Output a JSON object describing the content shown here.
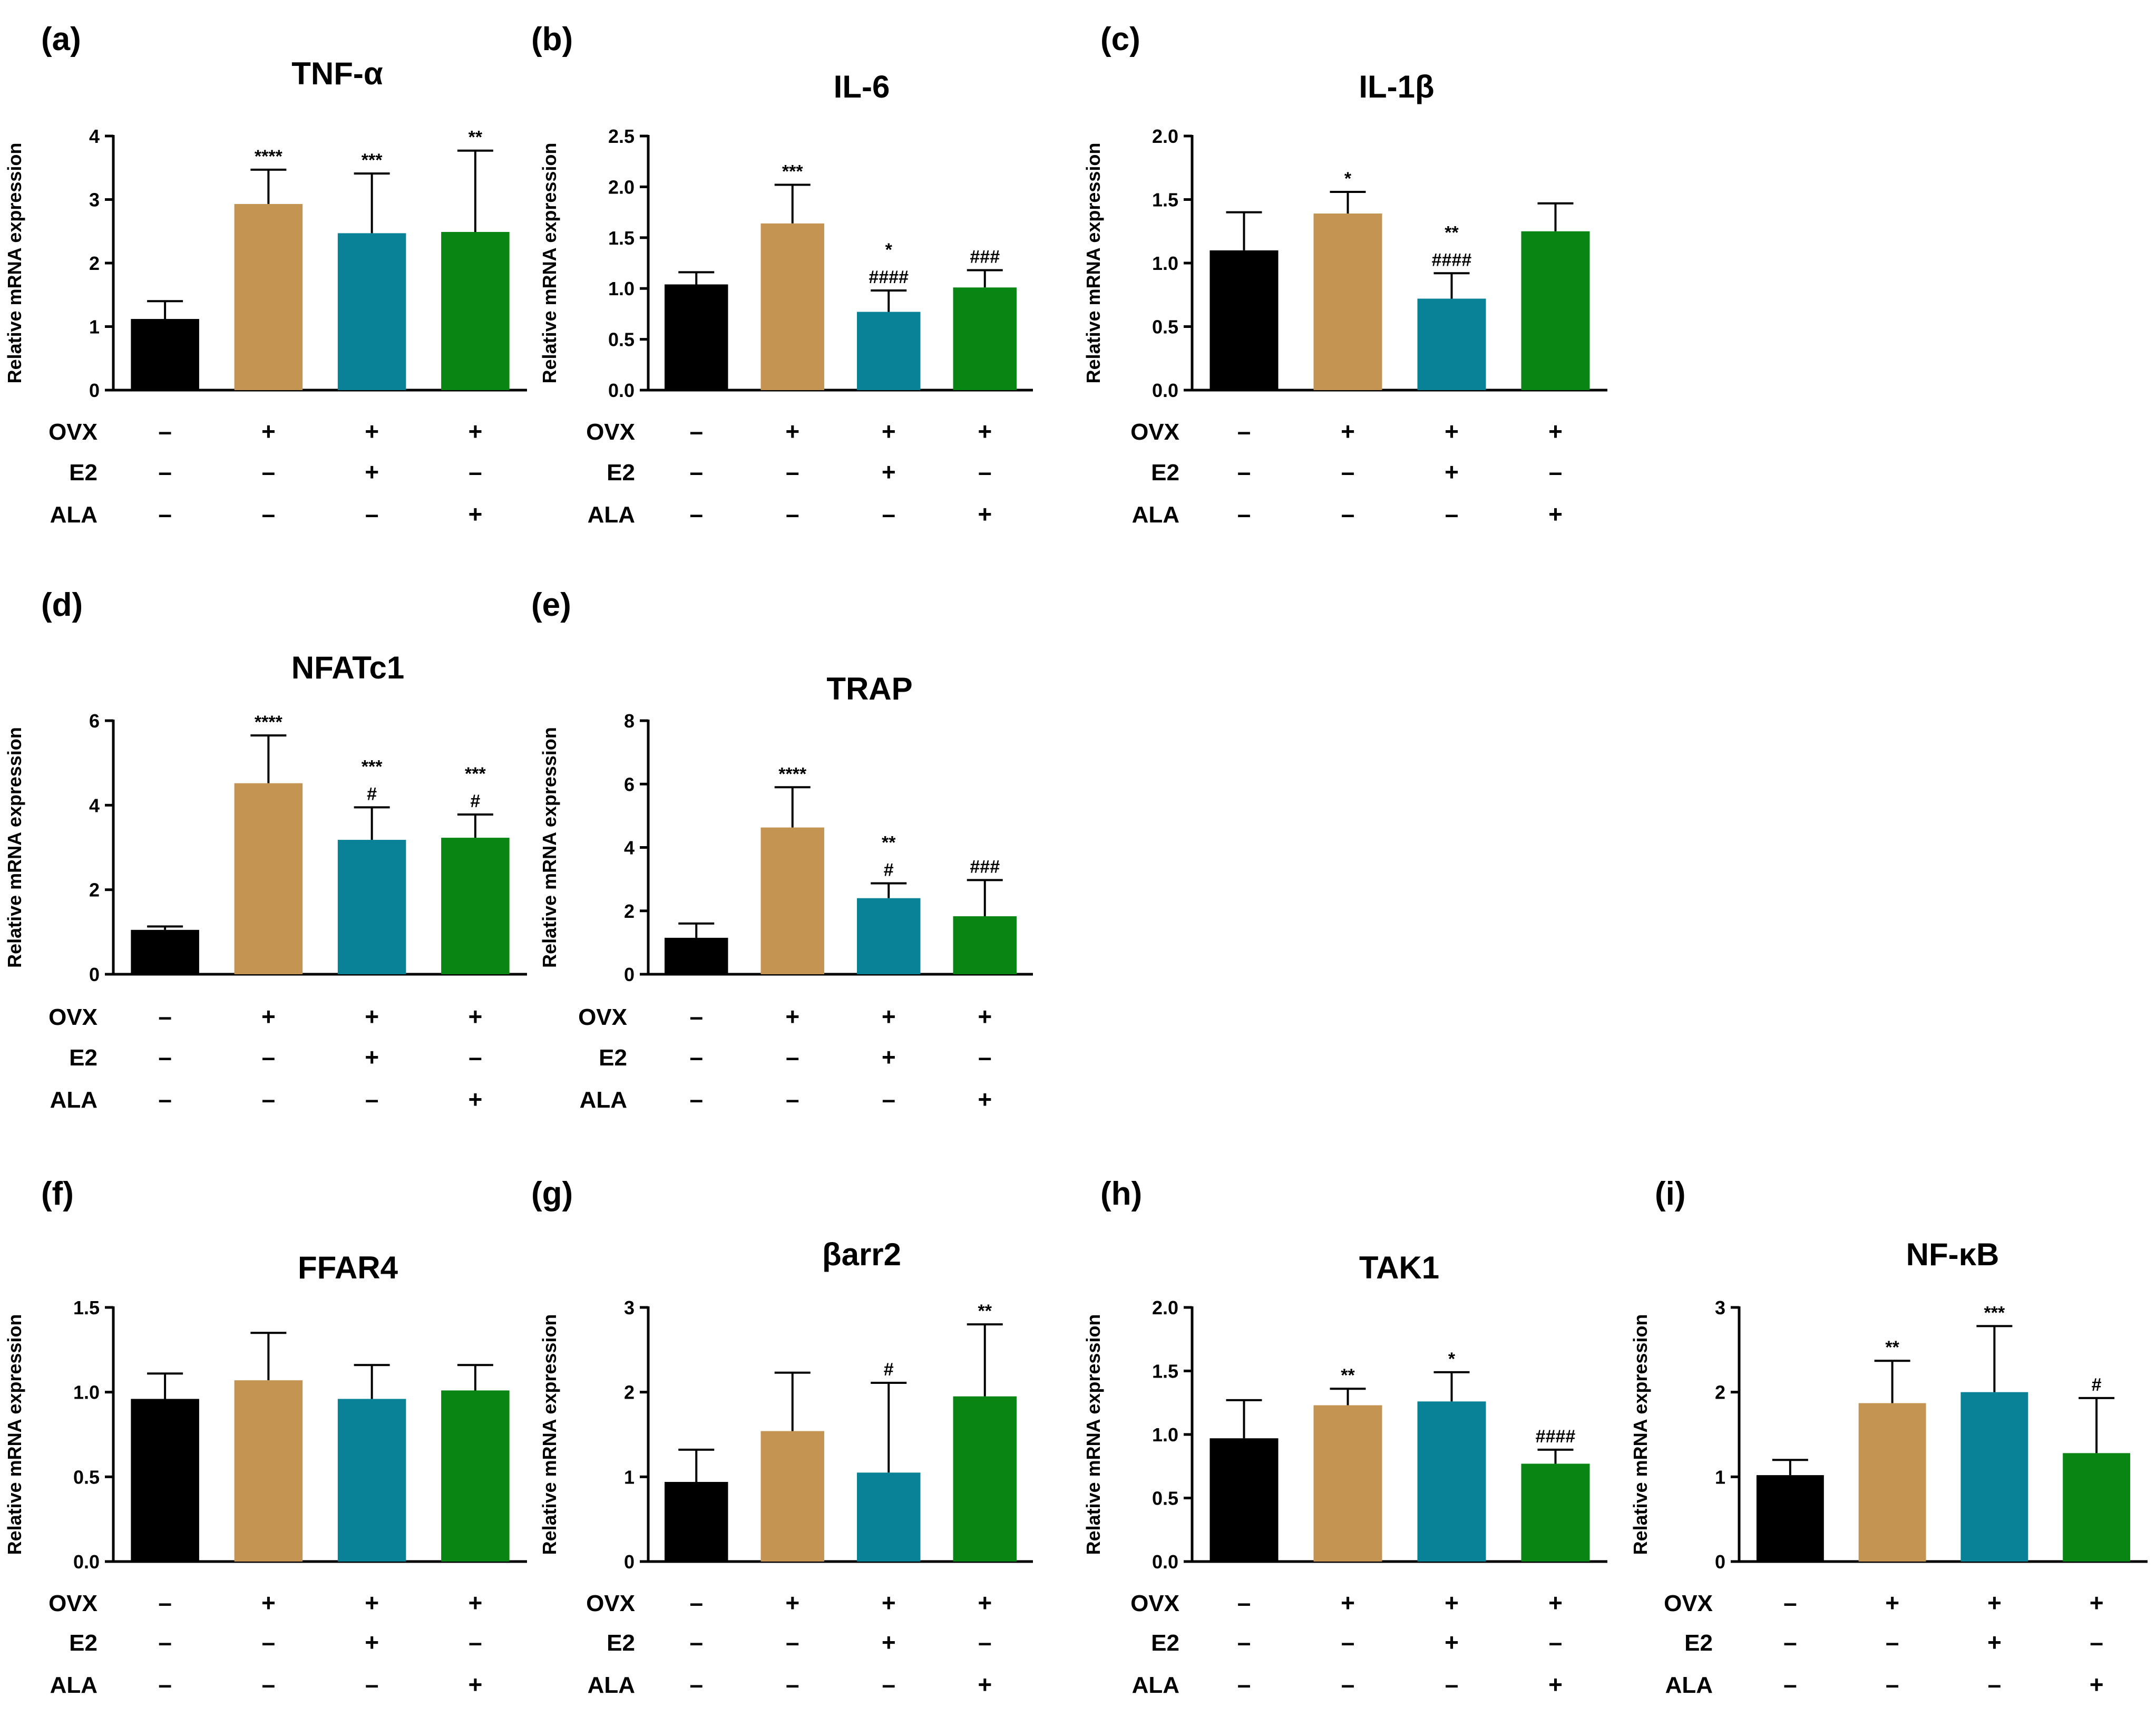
{
  "colors": [
    "#000000",
    "#c49453",
    "#098197",
    "#098514"
  ],
  "row_labels": [
    "OVX",
    "E2",
    "ALA"
  ],
  "chart_data": [
    {
      "panel": "(a)",
      "title": "TNF-α",
      "type": "bar",
      "ylabel": "Relative mRNA expression",
      "ylim": [
        0,
        4
      ],
      "yticks": [
        "0",
        "1",
        "2",
        "3",
        "4"
      ],
      "values": [
        1.12,
        2.93,
        2.47,
        2.49
      ],
      "errors": [
        0.28,
        0.54,
        0.94,
        1.28
      ],
      "annotations": [
        [
          "",
          ""
        ],
        [
          "****",
          ""
        ],
        [
          "***",
          ""
        ],
        [
          "**",
          ""
        ]
      ],
      "groups": [
        [
          "–",
          "+",
          "+",
          "+"
        ],
        [
          "–",
          "–",
          "+",
          "–"
        ],
        [
          "–",
          "–",
          "–",
          "+"
        ]
      ]
    },
    {
      "panel": "(b)",
      "title": "IL-6",
      "type": "bar",
      "ylabel": "Relative mRNA expression",
      "ylim": [
        0,
        2.5
      ],
      "yticks": [
        "0.0",
        "0.5",
        "1.0",
        "1.5",
        "2.0",
        "2.5"
      ],
      "values": [
        1.04,
        1.64,
        0.77,
        1.01
      ],
      "errors": [
        0.12,
        0.38,
        0.21,
        0.17
      ],
      "annotations": [
        [
          "",
          ""
        ],
        [
          "***",
          ""
        ],
        [
          "*",
          "####"
        ],
        [
          "",
          "###"
        ]
      ],
      "groups": [
        [
          "–",
          "+",
          "+",
          "+"
        ],
        [
          "–",
          "–",
          "+",
          "–"
        ],
        [
          "–",
          "–",
          "–",
          "+"
        ]
      ]
    },
    {
      "panel": "(c)",
      "title": "IL-1β",
      "type": "bar",
      "ylabel": "Relative mRNA expression",
      "ylim": [
        0,
        2.0
      ],
      "yticks": [
        "0.0",
        "0.5",
        "1.0",
        "1.5",
        "2.0"
      ],
      "values": [
        1.1,
        1.39,
        0.72,
        1.25
      ],
      "errors": [
        0.3,
        0.17,
        0.2,
        0.22
      ],
      "annotations": [
        [
          "",
          ""
        ],
        [
          "*",
          ""
        ],
        [
          "**",
          "####"
        ],
        [
          "",
          ""
        ]
      ],
      "groups": [
        [
          "–",
          "+",
          "+",
          "+"
        ],
        [
          "–",
          "–",
          "+",
          "–"
        ],
        [
          "–",
          "–",
          "–",
          "+"
        ]
      ]
    },
    {
      "panel": "(d)",
      "title": "NFATc1",
      "type": "bar",
      "ylabel": "Relative mRNA expression",
      "ylim": [
        0,
        6
      ],
      "yticks": [
        "0",
        "2",
        "4",
        "6"
      ],
      "values": [
        1.05,
        4.52,
        3.18,
        3.23
      ],
      "errors": [
        0.08,
        1.13,
        0.77,
        0.55
      ],
      "annotations": [
        [
          "",
          ""
        ],
        [
          "****",
          ""
        ],
        [
          "***",
          "#"
        ],
        [
          "***",
          "#"
        ]
      ],
      "groups": [
        [
          "–",
          "+",
          "+",
          "+"
        ],
        [
          "–",
          "–",
          "+",
          "–"
        ],
        [
          "–",
          "–",
          "–",
          "+"
        ]
      ]
    },
    {
      "panel": "(e)",
      "title": "TRAP",
      "type": "bar",
      "ylabel": "Relative mRNA expression",
      "ylim": [
        0,
        8
      ],
      "yticks": [
        "0",
        "2",
        "4",
        "6",
        "8"
      ],
      "values": [
        1.15,
        4.63,
        2.4,
        1.83
      ],
      "errors": [
        0.45,
        1.27,
        0.47,
        1.14
      ],
      "annotations": [
        [
          "",
          ""
        ],
        [
          "****",
          ""
        ],
        [
          "**",
          "#"
        ],
        [
          "",
          "###"
        ]
      ],
      "groups": [
        [
          "–",
          "+",
          "+",
          "+"
        ],
        [
          "–",
          "–",
          "+",
          "–"
        ],
        [
          "–",
          "–",
          "–",
          "+"
        ]
      ]
    },
    {
      "panel": "(f)",
      "title": "FFAR4",
      "type": "bar",
      "ylabel": "Relative mRNA expression",
      "ylim": [
        0,
        1.5
      ],
      "yticks": [
        "0.0",
        "0.5",
        "1.0",
        "1.5"
      ],
      "values": [
        0.96,
        1.07,
        0.96,
        1.01
      ],
      "errors": [
        0.15,
        0.28,
        0.2,
        0.15
      ],
      "annotations": [
        [
          "",
          ""
        ],
        [
          "",
          ""
        ],
        [
          "",
          ""
        ],
        [
          "",
          ""
        ]
      ],
      "groups": [
        [
          "–",
          "+",
          "+",
          "+"
        ],
        [
          "–",
          "–",
          "+",
          "–"
        ],
        [
          "–",
          "–",
          "–",
          "+"
        ]
      ]
    },
    {
      "panel": "(g)",
      "title": "βarr2",
      "type": "bar",
      "ylabel": "Relative mRNA expression",
      "ylim": [
        0,
        3
      ],
      "yticks": [
        "0",
        "1",
        "2",
        "3"
      ],
      "values": [
        0.94,
        1.54,
        1.05,
        1.95
      ],
      "errors": [
        0.38,
        0.69,
        1.06,
        0.85
      ],
      "annotations": [
        [
          "",
          ""
        ],
        [
          "",
          ""
        ],
        [
          "",
          "#"
        ],
        [
          "**",
          ""
        ]
      ],
      "groups": [
        [
          "–",
          "+",
          "+",
          "+"
        ],
        [
          "–",
          "–",
          "+",
          "–"
        ],
        [
          "–",
          "–",
          "–",
          "+"
        ]
      ]
    },
    {
      "panel": "(h)",
      "title": "TAK1",
      "type": "bar",
      "ylabel": "Relative mRNA expression",
      "ylim": [
        0,
        2.0
      ],
      "yticks": [
        "0.0",
        "0.5",
        "1.0",
        "1.5",
        "2.0"
      ],
      "values": [
        0.97,
        1.23,
        1.26,
        0.77
      ],
      "errors": [
        0.3,
        0.13,
        0.23,
        0.11
      ],
      "annotations": [
        [
          "",
          ""
        ],
        [
          "**",
          ""
        ],
        [
          "*",
          ""
        ],
        [
          "",
          "####"
        ]
      ],
      "groups": [
        [
          "–",
          "+",
          "+",
          "+"
        ],
        [
          "–",
          "–",
          "+",
          "–"
        ],
        [
          "–",
          "–",
          "–",
          "+"
        ]
      ]
    },
    {
      "panel": "(i)",
      "title": "NF-κB",
      "type": "bar",
      "ylabel": "Relative mRNA expression",
      "ylim": [
        0,
        3
      ],
      "yticks": [
        "0",
        "1",
        "2",
        "3"
      ],
      "values": [
        1.02,
        1.87,
        2.0,
        1.28
      ],
      "errors": [
        0.18,
        0.5,
        0.78,
        0.65
      ],
      "annotations": [
        [
          "",
          ""
        ],
        [
          "**",
          ""
        ],
        [
          "***",
          ""
        ],
        [
          "",
          "#"
        ]
      ],
      "groups": [
        [
          "–",
          "+",
          "+",
          "+"
        ],
        [
          "–",
          "–",
          "+",
          "–"
        ],
        [
          "–",
          "–",
          "–",
          "+"
        ]
      ]
    }
  ]
}
